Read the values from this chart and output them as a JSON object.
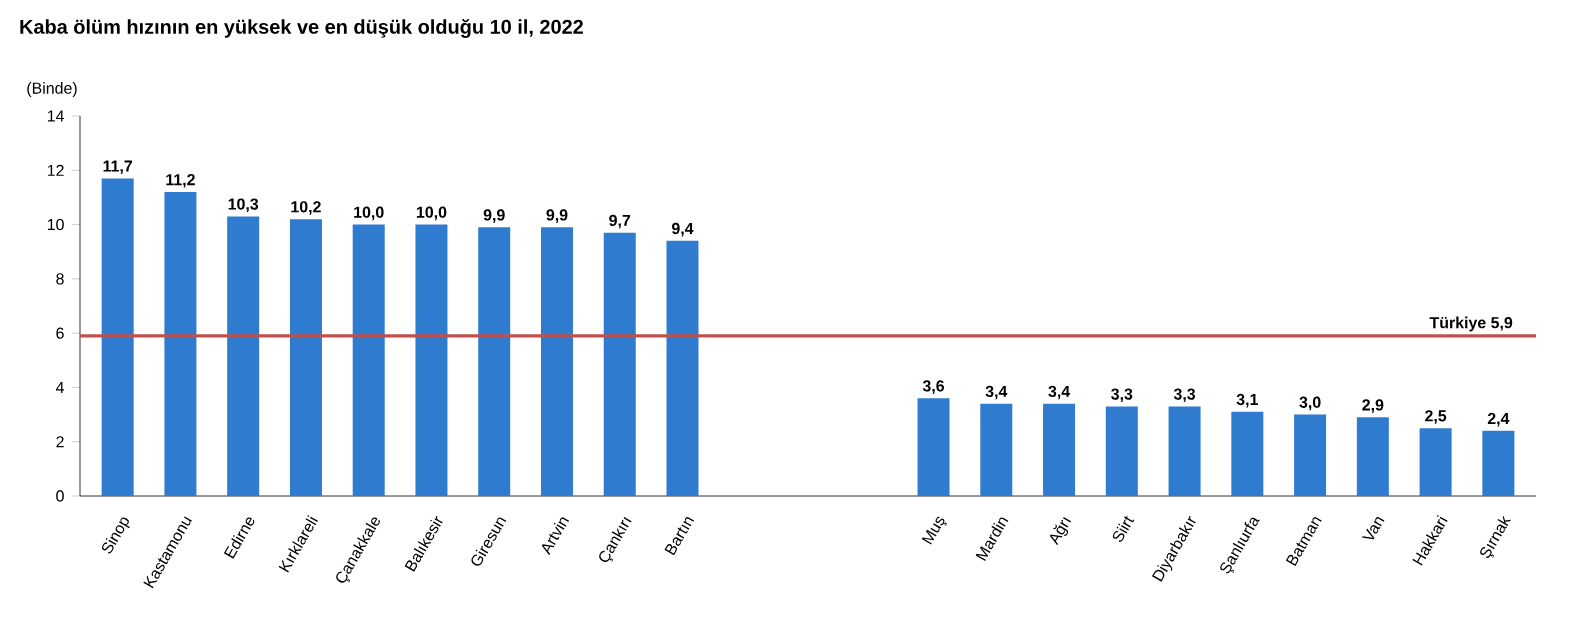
{
  "chart_data": {
    "type": "bar",
    "title": "Kaba ölüm hızının en yüksek ve en düşük olduğu 10 il, 2022",
    "ylabel": "(Binde)",
    "categories": [
      "Sinop",
      "Kastamonu",
      "Edirne",
      "Kırklareli",
      "Çanakkale",
      "Balıkesir",
      "Giresun",
      "Artvin",
      "Çankırı",
      "Bartın",
      null,
      null,
      null,
      "Muş",
      "Mardin",
      "Ağrı",
      "Siirt",
      "Diyarbakır",
      "Şanlıurfa",
      "Batman",
      "Van",
      "Hakkari",
      "Şırnak"
    ],
    "values": [
      11.7,
      11.2,
      10.3,
      10.2,
      10.0,
      10.0,
      9.9,
      9.9,
      9.7,
      9.4,
      null,
      null,
      null,
      3.6,
      3.4,
      3.4,
      3.3,
      3.3,
      3.1,
      3.0,
      2.9,
      2.5,
      2.4
    ],
    "value_labels": [
      "11,7",
      "11,2",
      "10,3",
      "10,2",
      "10,0",
      "10,0",
      "9,9",
      "9,9",
      "9,7",
      "9,4",
      null,
      null,
      null,
      "3,6",
      "3,4",
      "3,4",
      "3,3",
      "3,3",
      "3,1",
      "3,0",
      "2,9",
      "2,5",
      "2,4"
    ],
    "color": "#2e7bcf",
    "ylim": [
      0,
      14
    ],
    "yticks": [
      0,
      2,
      4,
      6,
      8,
      10,
      12,
      14
    ],
    "ref_lines": [
      {
        "axis": "y",
        "value": 5.9,
        "label": "Türkiye  5,9",
        "color": "#c0504d"
      }
    ]
  }
}
